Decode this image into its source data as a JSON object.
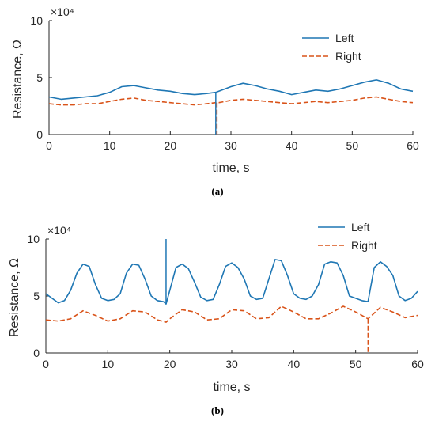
{
  "chart_data": [
    {
      "type": "line",
      "caption": "(a)",
      "exponent_label": "×10⁴",
      "xlabel": "time, s",
      "ylabel": "Resistance, Ω",
      "xlim": [
        0,
        60
      ],
      "ylim": [
        0,
        10
      ],
      "xticks": [
        0,
        10,
        20,
        30,
        40,
        50,
        60
      ],
      "yticks": [
        0,
        5,
        10
      ],
      "legend_position": "top-right",
      "grid": false,
      "colors": {
        "Left": "#1f77b4",
        "Right": "#d95319"
      },
      "series": [
        {
          "name": "Left",
          "style": "solid",
          "x": [
            0,
            2,
            4,
            6,
            8,
            10,
            12,
            14,
            16,
            18,
            20,
            22,
            24,
            26,
            27.5,
            28,
            30,
            32,
            34,
            36,
            38,
            40,
            42,
            44,
            46,
            48,
            50,
            52,
            54,
            56,
            58,
            60
          ],
          "y": [
            3.3,
            3.1,
            3.2,
            3.3,
            3.4,
            3.7,
            4.2,
            4.3,
            4.1,
            3.9,
            3.8,
            3.6,
            3.5,
            3.6,
            3.7,
            3.8,
            4.2,
            4.5,
            4.3,
            4.0,
            3.8,
            3.5,
            3.7,
            3.9,
            3.8,
            4.0,
            4.3,
            4.6,
            4.8,
            4.5,
            4.0,
            3.8
          ]
        },
        {
          "name": "Right",
          "style": "dashed",
          "x": [
            0,
            2,
            4,
            6,
            8,
            10,
            12,
            14,
            16,
            18,
            20,
            22,
            24,
            26,
            27.5,
            28,
            30,
            32,
            34,
            36,
            38,
            40,
            42,
            44,
            46,
            48,
            50,
            52,
            54,
            56,
            58,
            60
          ],
          "y": [
            2.7,
            2.6,
            2.6,
            2.7,
            2.7,
            2.9,
            3.1,
            3.2,
            3.0,
            2.9,
            2.8,
            2.7,
            2.6,
            2.7,
            2.8,
            2.8,
            3.0,
            3.1,
            3.0,
            2.9,
            2.8,
            2.7,
            2.8,
            2.9,
            2.8,
            2.9,
            3.0,
            3.2,
            3.3,
            3.1,
            2.9,
            2.8
          ]
        }
      ],
      "spikes": [
        {
          "series": "Left",
          "x": 27.5,
          "from": 3.7,
          "to": 0
        },
        {
          "series": "Right",
          "x": 27.7,
          "from": 2.8,
          "to": 0
        }
      ]
    },
    {
      "type": "line",
      "caption": "(b)",
      "exponent_label": "×10⁴",
      "xlabel": "time, s",
      "ylabel": "Resistance, Ω",
      "xlim": [
        0,
        60
      ],
      "ylim": [
        0,
        10
      ],
      "xticks": [
        0,
        10,
        20,
        30,
        40,
        50,
        60
      ],
      "yticks": [
        0,
        5,
        10
      ],
      "legend_position": "top-right",
      "grid": false,
      "colors": {
        "Left": "#1f77b4",
        "Right": "#d95319"
      },
      "series": [
        {
          "name": "Left",
          "style": "solid",
          "x": [
            0,
            1,
            2,
            3,
            4,
            5,
            6,
            7,
            8,
            9,
            10,
            11,
            12,
            13,
            14,
            15,
            16,
            17,
            18,
            19,
            19.4,
            20,
            21,
            22,
            23,
            24,
            25,
            26,
            27,
            28,
            29,
            30,
            31,
            32,
            33,
            34,
            35,
            36,
            37,
            38,
            39,
            40,
            41,
            42,
            43,
            44,
            45,
            46,
            47,
            48,
            49,
            50,
            51,
            52,
            53,
            54,
            55,
            56,
            57,
            58,
            59,
            60
          ],
          "y": [
            5.2,
            4.8,
            4.4,
            4.6,
            5.5,
            7.0,
            7.8,
            7.6,
            6.0,
            4.8,
            4.6,
            4.7,
            5.2,
            7.0,
            7.8,
            7.7,
            6.5,
            5.0,
            4.6,
            4.5,
            4.3,
            5.5,
            7.5,
            7.8,
            7.4,
            6.2,
            4.9,
            4.6,
            4.7,
            6.0,
            7.6,
            7.9,
            7.5,
            6.5,
            5.0,
            4.7,
            4.8,
            6.5,
            8.2,
            8.1,
            6.8,
            5.2,
            4.8,
            4.7,
            5.0,
            6.0,
            7.8,
            8.0,
            7.9,
            6.8,
            5.0,
            4.8,
            4.6,
            4.5,
            7.5,
            8.0,
            7.6,
            6.8,
            5.0,
            4.6,
            4.8,
            5.4
          ]
        },
        {
          "name": "Right",
          "style": "dashed",
          "x": [
            0,
            2,
            4,
            6,
            8,
            10,
            12,
            14,
            16,
            18,
            19.4,
            20,
            22,
            24,
            26,
            28,
            30,
            32,
            34,
            36,
            38,
            40,
            42,
            44,
            46,
            48,
            50,
            52,
            54,
            56,
            58,
            60
          ],
          "y": [
            2.9,
            2.8,
            3.0,
            3.7,
            3.3,
            2.8,
            3.0,
            3.7,
            3.6,
            2.9,
            2.7,
            3.0,
            3.8,
            3.6,
            2.9,
            3.0,
            3.8,
            3.7,
            3.0,
            3.1,
            4.1,
            3.6,
            3.0,
            3.0,
            3.5,
            4.1,
            3.6,
            3.0,
            4.0,
            3.6,
            3.1,
            3.3
          ]
        }
      ],
      "spikes": [
        {
          "series": "Left",
          "x": 19.4,
          "from": 4.3,
          "to": 10.0
        },
        {
          "series": "Right",
          "x": 52.0,
          "from": 3.0,
          "to": 0
        }
      ]
    }
  ]
}
